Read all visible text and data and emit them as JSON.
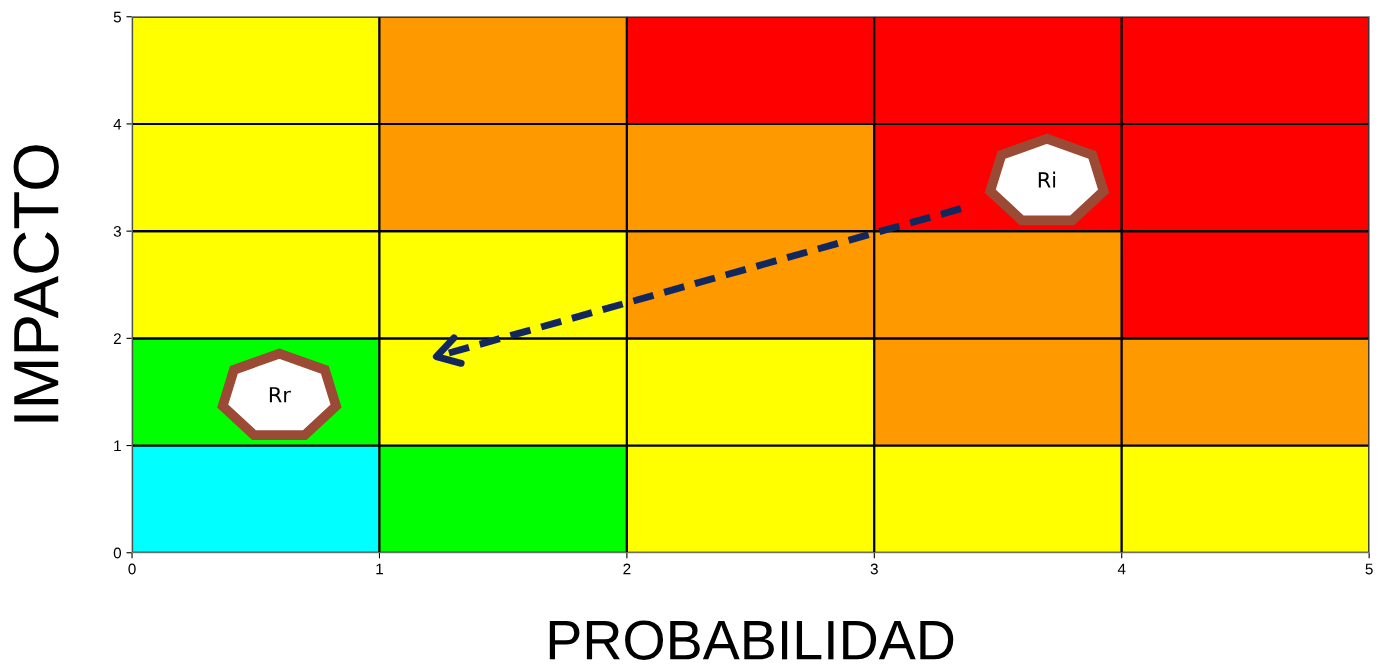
{
  "chart_data": {
    "type": "bar",
    "stacked": true,
    "xlabel": "PROBABILIDAD",
    "ylabel": "IMPACTO",
    "xlim": [
      0,
      5
    ],
    "xticks": [
      0,
      1,
      2,
      3,
      4,
      5
    ],
    "ylim": [
      0,
      5
    ],
    "yticks": [
      0,
      1,
      2,
      3,
      4,
      5
    ],
    "grid": false,
    "legend": false,
    "x": [
      0.5,
      1.5,
      2.5,
      3.5,
      4.5
    ],
    "series": [
      {
        "colors": [
          "#00ffff",
          "#00ff00",
          "#ffff00",
          "#ffff00",
          "#ffff00"
        ],
        "values": [
          1,
          1,
          1,
          1,
          1
        ]
      },
      {
        "colors": [
          "#00ff00",
          "#ffff00",
          "#ffff00",
          "#ff9900",
          "#ff9900"
        ],
        "values": [
          1,
          1,
          1,
          1,
          1
        ]
      },
      {
        "colors": [
          "#ffff00",
          "#ffff00",
          "#ff9900",
          "#ff9900",
          "#ff0000"
        ],
        "values": [
          1,
          1,
          1,
          1,
          1
        ]
      },
      {
        "colors": [
          "#ffff00",
          "#ff9900",
          "#ff9900",
          "#ff0000",
          "#ff0000"
        ],
        "values": [
          1,
          1,
          1,
          1,
          1
        ]
      },
      {
        "colors": [
          "#ffff00",
          "#ff9900",
          "#ff0000",
          "#ff0000",
          "#ff0000"
        ],
        "values": [
          1,
          1,
          1,
          1,
          1
        ]
      },
      {
        "type": "line",
        "line_style": "dashed",
        "color": "#12275e",
        "x": [
          3.35,
          1.23
        ],
        "values": [
          3.21,
          1.83
        ]
      }
    ],
    "annotations": [
      "Rr",
      "Ri"
    ]
  }
}
